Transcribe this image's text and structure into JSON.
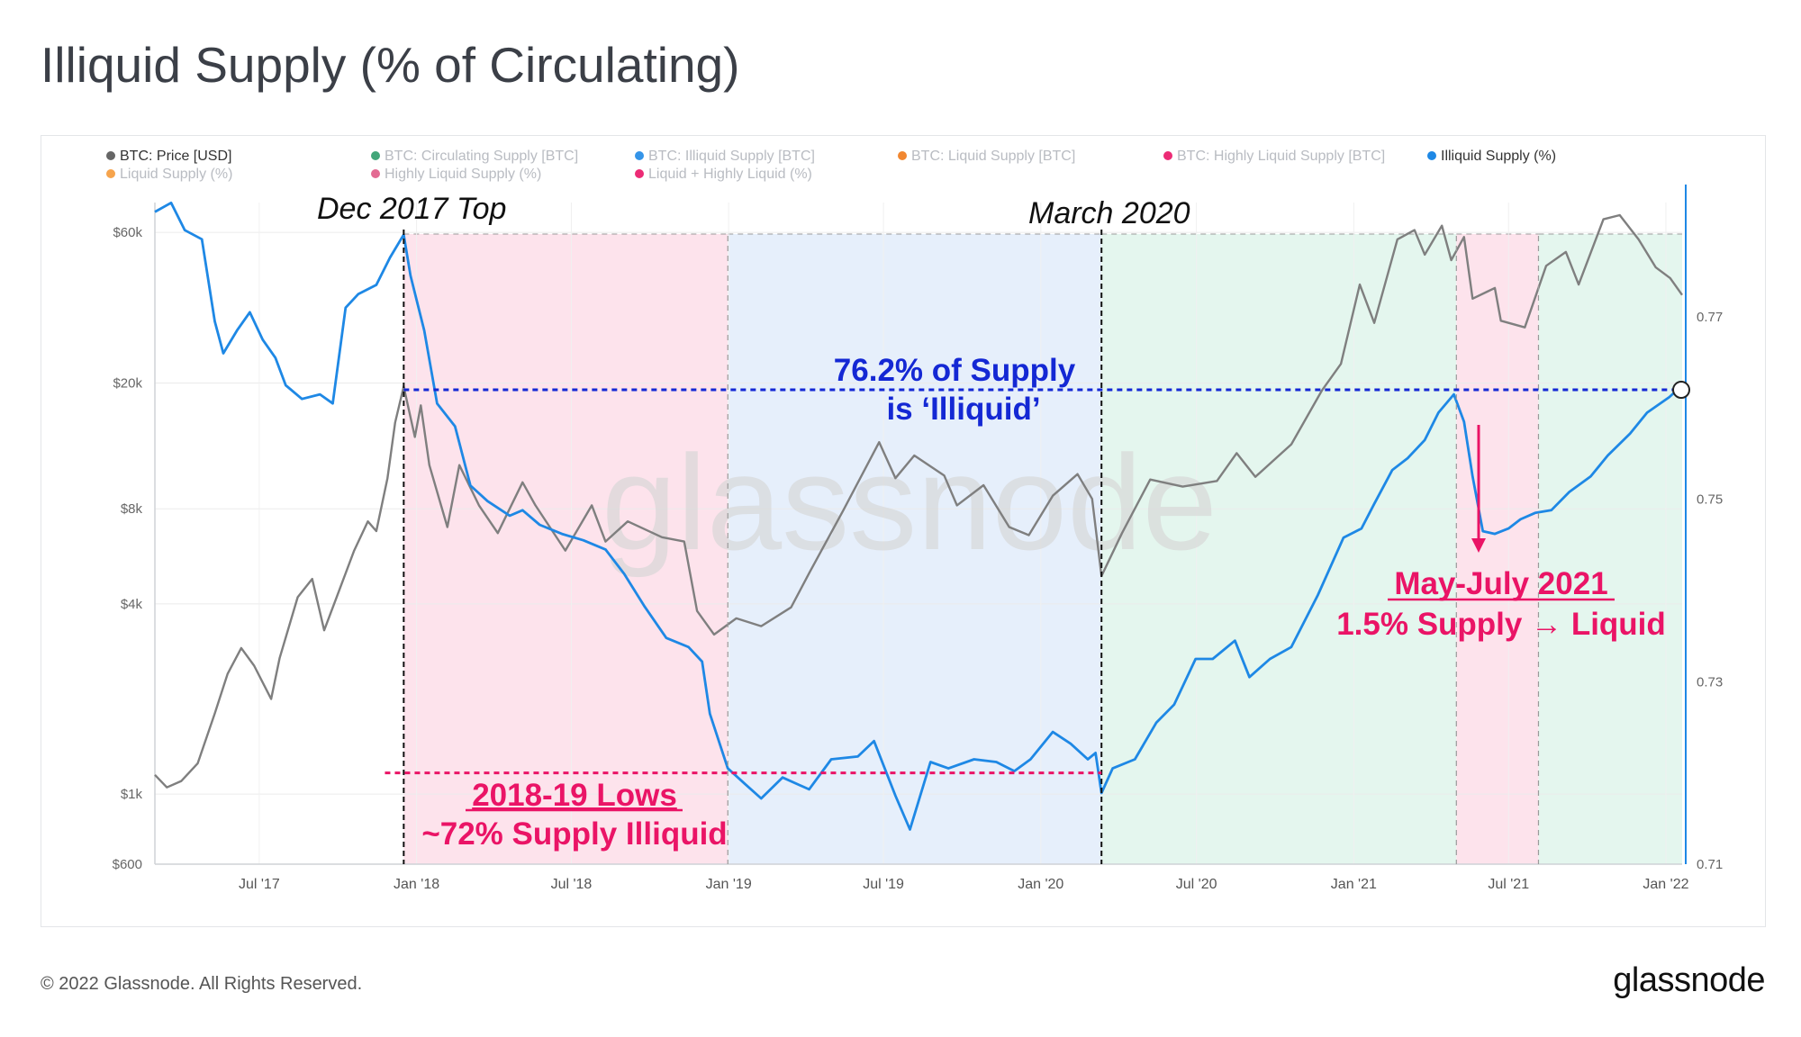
{
  "title": "Illiquid Supply (% of Circulating)",
  "footer": {
    "copyright": "© 2022 Glassnode. All Rights Reserved.",
    "logo": "glassnode"
  },
  "watermark": "glassnode",
  "colors": {
    "price": "#7f7f7f",
    "illiquid": "#1e88e5",
    "pink_zone": "#fde3ec",
    "blue_zone": "#e6effb",
    "green_zone": "#e4f6ee",
    "annotation_blue": "#1428d4",
    "annotation_pink": "#ea1466"
  },
  "legend": [
    {
      "label": "BTC: Price [USD]",
      "color": "#666666",
      "active": true
    },
    {
      "label": "BTC: Circulating Supply [BTC]",
      "color": "#2e9c6a",
      "active": false
    },
    {
      "label": "BTC: Illiquid Supply [BTC]",
      "color": "#1e88e5",
      "active": false
    },
    {
      "label": "BTC: Liquid Supply [BTC]",
      "color": "#f07a1a",
      "active": false
    },
    {
      "label": "BTC: Highly Liquid Supply [BTC]",
      "color": "#ea1466",
      "active": false
    },
    {
      "label": "Illiquid Supply (%)",
      "color": "#1e88e5",
      "active": true
    },
    {
      "label": "Liquid Supply (%)",
      "color": "#f59a3a",
      "active": false
    },
    {
      "label": "Highly Liquid Supply (%)",
      "color": "#e05a86",
      "active": false
    },
    {
      "label": "Liquid + Highly Liquid (%)",
      "color": "#ea1466",
      "active": false
    }
  ],
  "annotations": {
    "dec2017": "Dec 2017 Top",
    "march2020": "March 2020",
    "supply_line1": "76.2% of Supply",
    "supply_line2": "is ‘Illiquid’",
    "lows_line1": "2018-19 Lows",
    "lows_line2": "~72% Supply Illiquid",
    "may_line1": "May-July 2021",
    "may_line2": "1.5% Supply → Liquid"
  },
  "chart_data": {
    "type": "line",
    "x_axis": {
      "type": "date",
      "range": [
        "2017-03-01",
        "2022-01-20"
      ],
      "ticks": [
        {
          "date": "2017-07-01",
          "label": "Jul '17"
        },
        {
          "date": "2018-01-01",
          "label": "Jan '18"
        },
        {
          "date": "2018-07-01",
          "label": "Jul '18"
        },
        {
          "date": "2019-01-01",
          "label": "Jan '19"
        },
        {
          "date": "2019-07-01",
          "label": "Jul '19"
        },
        {
          "date": "2020-01-01",
          "label": "Jan '20"
        },
        {
          "date": "2020-07-01",
          "label": "Jul '20"
        },
        {
          "date": "2021-01-01",
          "label": "Jan '21"
        },
        {
          "date": "2021-07-01",
          "label": "Jul '21"
        },
        {
          "date": "2022-01-01",
          "label": "Jan '22"
        }
      ]
    },
    "y_left": {
      "scale": "log",
      "range": [
        600,
        85000
      ],
      "ticks": [
        {
          "value": 60000,
          "label": "$60k"
        },
        {
          "value": 20000,
          "label": "$20k"
        },
        {
          "value": 8000,
          "label": "$8k"
        },
        {
          "value": 4000,
          "label": "$4k"
        },
        {
          "value": 1000,
          "label": "$1k"
        },
        {
          "value": 600,
          "label": "$600"
        }
      ]
    },
    "y_right": {
      "scale": "linear",
      "range": [
        0.71,
        0.7845
      ],
      "ticks": [
        {
          "value": 0.77,
          "label": "0.77"
        },
        {
          "value": 0.75,
          "label": "0.75"
        },
        {
          "value": 0.73,
          "label": "0.73"
        },
        {
          "value": 0.71,
          "label": "0.71"
        }
      ]
    },
    "zones": [
      {
        "start": "2017-12-17",
        "end": "2018-12-31",
        "color": "pink"
      },
      {
        "start": "2018-12-31",
        "end": "2020-03-12",
        "color": "blue"
      },
      {
        "start": "2020-03-12",
        "end": "2021-05-01",
        "color": "green"
      },
      {
        "start": "2021-05-01",
        "end": "2021-08-05",
        "color": "pink"
      },
      {
        "start": "2021-08-05",
        "end": "2022-01-20",
        "color": "green"
      }
    ],
    "reference_lines": [
      {
        "axis": "right",
        "value": 0.762,
        "color": "blue",
        "from": "2017-12-17",
        "to": "2022-01-20"
      },
      {
        "axis": "right",
        "value": 0.72,
        "color": "pink",
        "from": "2017-11-25",
        "to": "2020-03-12"
      }
    ],
    "series": [
      {
        "name": "BTC: Price [USD]",
        "axis": "left",
        "color": "#7f7f7f",
        "points": [
          [
            "2017-03-01",
            1150
          ],
          [
            "2017-03-15",
            1050
          ],
          [
            "2017-04-01",
            1100
          ],
          [
            "2017-04-20",
            1250
          ],
          [
            "2017-05-10",
            1800
          ],
          [
            "2017-05-25",
            2400
          ],
          [
            "2017-06-10",
            2900
          ],
          [
            "2017-06-25",
            2550
          ],
          [
            "2017-07-15",
            2000
          ],
          [
            "2017-07-25",
            2700
          ],
          [
            "2017-08-15",
            4200
          ],
          [
            "2017-09-01",
            4800
          ],
          [
            "2017-09-15",
            3300
          ],
          [
            "2017-10-01",
            4300
          ],
          [
            "2017-10-20",
            5900
          ],
          [
            "2017-11-05",
            7300
          ],
          [
            "2017-11-15",
            6800
          ],
          [
            "2017-11-28",
            10000
          ],
          [
            "2017-12-07",
            15000
          ],
          [
            "2017-12-17",
            19500
          ],
          [
            "2017-12-30",
            13500
          ],
          [
            "2018-01-06",
            17000
          ],
          [
            "2018-01-16",
            11000
          ],
          [
            "2018-02-06",
            7000
          ],
          [
            "2018-02-20",
            11000
          ],
          [
            "2018-03-15",
            8200
          ],
          [
            "2018-04-06",
            6700
          ],
          [
            "2018-05-05",
            9700
          ],
          [
            "2018-05-20",
            8200
          ],
          [
            "2018-06-24",
            5900
          ],
          [
            "2018-07-25",
            8200
          ],
          [
            "2018-08-10",
            6300
          ],
          [
            "2018-09-05",
            7300
          ],
          [
            "2018-10-15",
            6500
          ],
          [
            "2018-11-10",
            6300
          ],
          [
            "2018-11-25",
            3800
          ],
          [
            "2018-12-15",
            3200
          ],
          [
            "2019-01-10",
            3600
          ],
          [
            "2019-02-08",
            3400
          ],
          [
            "2019-03-15",
            3900
          ],
          [
            "2019-04-05",
            5000
          ],
          [
            "2019-05-15",
            7900
          ],
          [
            "2019-06-26",
            13000
          ],
          [
            "2019-07-15",
            10000
          ],
          [
            "2019-08-06",
            11800
          ],
          [
            "2019-09-10",
            10200
          ],
          [
            "2019-09-25",
            8200
          ],
          [
            "2019-10-26",
            9500
          ],
          [
            "2019-11-25",
            7000
          ],
          [
            "2019-12-18",
            6600
          ],
          [
            "2020-01-15",
            8800
          ],
          [
            "2020-02-13",
            10300
          ],
          [
            "2020-03-01",
            8600
          ],
          [
            "2020-03-12",
            4900
          ],
          [
            "2020-04-05",
            6700
          ],
          [
            "2020-05-08",
            9900
          ],
          [
            "2020-06-15",
            9400
          ],
          [
            "2020-07-25",
            9800
          ],
          [
            "2020-08-17",
            12000
          ],
          [
            "2020-09-08",
            10100
          ],
          [
            "2020-10-20",
            12800
          ],
          [
            "2020-11-25",
            19000
          ],
          [
            "2020-12-17",
            23000
          ],
          [
            "2021-01-08",
            41000
          ],
          [
            "2021-01-25",
            31000
          ],
          [
            "2021-02-21",
            57000
          ],
          [
            "2021-03-13",
            61000
          ],
          [
            "2021-03-25",
            51000
          ],
          [
            "2021-04-14",
            63000
          ],
          [
            "2021-04-25",
            49000
          ],
          [
            "2021-05-10",
            58000
          ],
          [
            "2021-05-20",
            37000
          ],
          [
            "2021-06-15",
            40000
          ],
          [
            "2021-06-22",
            31500
          ],
          [
            "2021-07-20",
            30000
          ],
          [
            "2021-08-14",
            47000
          ],
          [
            "2021-09-06",
            52000
          ],
          [
            "2021-09-21",
            41000
          ],
          [
            "2021-10-20",
            66000
          ],
          [
            "2021-11-08",
            68000
          ],
          [
            "2021-11-30",
            57000
          ],
          [
            "2021-12-20",
            46500
          ],
          [
            "2022-01-06",
            43000
          ],
          [
            "2022-01-20",
            38000
          ]
        ]
      },
      {
        "name": "Illiquid Supply (%)",
        "axis": "right",
        "color": "#1e88e5",
        "points": [
          [
            "2017-03-01",
            0.7815
          ],
          [
            "2017-03-20",
            0.7825
          ],
          [
            "2017-04-05",
            0.7795
          ],
          [
            "2017-04-25",
            0.7785
          ],
          [
            "2017-05-10",
            0.7695
          ],
          [
            "2017-05-20",
            0.766
          ],
          [
            "2017-06-05",
            0.7685
          ],
          [
            "2017-06-20",
            0.7705
          ],
          [
            "2017-07-05",
            0.7675
          ],
          [
            "2017-07-20",
            0.7655
          ],
          [
            "2017-08-01",
            0.7625
          ],
          [
            "2017-08-20",
            0.761
          ],
          [
            "2017-09-10",
            0.7615
          ],
          [
            "2017-09-25",
            0.7605
          ],
          [
            "2017-10-10",
            0.771
          ],
          [
            "2017-10-25",
            0.7725
          ],
          [
            "2017-11-15",
            0.7735
          ],
          [
            "2017-12-01",
            0.7765
          ],
          [
            "2017-12-17",
            0.779
          ],
          [
            "2017-12-25",
            0.7745
          ],
          [
            "2018-01-10",
            0.7685
          ],
          [
            "2018-01-25",
            0.7605
          ],
          [
            "2018-02-15",
            0.758
          ],
          [
            "2018-03-05",
            0.7515
          ],
          [
            "2018-03-25",
            0.7498
          ],
          [
            "2018-04-20",
            0.7482
          ],
          [
            "2018-05-05",
            0.7488
          ],
          [
            "2018-05-25",
            0.7472
          ],
          [
            "2018-06-20",
            0.7462
          ],
          [
            "2018-07-15",
            0.7455
          ],
          [
            "2018-08-10",
            0.7445
          ],
          [
            "2018-09-01",
            0.7418
          ],
          [
            "2018-09-25",
            0.7382
          ],
          [
            "2018-10-20",
            0.7348
          ],
          [
            "2018-11-15",
            0.7338
          ],
          [
            "2018-12-01",
            0.7322
          ],
          [
            "2018-12-10",
            0.7265
          ],
          [
            "2018-12-31",
            0.7205
          ],
          [
            "2019-01-20",
            0.7188
          ],
          [
            "2019-02-08",
            0.7172
          ],
          [
            "2019-03-05",
            0.7195
          ],
          [
            "2019-04-05",
            0.7182
          ],
          [
            "2019-05-01",
            0.7215
          ],
          [
            "2019-06-01",
            0.7218
          ],
          [
            "2019-06-20",
            0.7235
          ],
          [
            "2019-07-15",
            0.7175
          ],
          [
            "2019-08-01",
            0.7138
          ],
          [
            "2019-08-25",
            0.7212
          ],
          [
            "2019-09-15",
            0.7205
          ],
          [
            "2019-10-15",
            0.7215
          ],
          [
            "2019-11-10",
            0.7212
          ],
          [
            "2019-12-01",
            0.7202
          ],
          [
            "2019-12-20",
            0.7215
          ],
          [
            "2020-01-15",
            0.7245
          ],
          [
            "2020-02-05",
            0.7232
          ],
          [
            "2020-02-25",
            0.7215
          ],
          [
            "2020-03-05",
            0.7222
          ],
          [
            "2020-03-12",
            0.7178
          ],
          [
            "2020-03-25",
            0.7205
          ],
          [
            "2020-04-20",
            0.7215
          ],
          [
            "2020-05-15",
            0.7255
          ],
          [
            "2020-06-05",
            0.7275
          ],
          [
            "2020-06-30",
            0.7325
          ],
          [
            "2020-07-20",
            0.7325
          ],
          [
            "2020-08-15",
            0.7345
          ],
          [
            "2020-09-01",
            0.7305
          ],
          [
            "2020-09-25",
            0.7325
          ],
          [
            "2020-10-20",
            0.7338
          ],
          [
            "2020-11-20",
            0.7395
          ],
          [
            "2020-12-20",
            0.7458
          ],
          [
            "2021-01-10",
            0.7468
          ],
          [
            "2021-01-25",
            0.7495
          ],
          [
            "2021-02-15",
            0.7532
          ],
          [
            "2021-03-05",
            0.7545
          ],
          [
            "2021-03-25",
            0.7565
          ],
          [
            "2021-04-10",
            0.7595
          ],
          [
            "2021-04-28",
            0.7615
          ],
          [
            "2021-05-10",
            0.7585
          ],
          [
            "2021-05-20",
            0.7525
          ],
          [
            "2021-06-01",
            0.7465
          ],
          [
            "2021-06-15",
            0.7462
          ],
          [
            "2021-07-01",
            0.7468
          ],
          [
            "2021-07-15",
            0.7478
          ],
          [
            "2021-08-01",
            0.7485
          ],
          [
            "2021-08-20",
            0.7488
          ],
          [
            "2021-09-10",
            0.7508
          ],
          [
            "2021-10-05",
            0.7525
          ],
          [
            "2021-10-25",
            0.7548
          ],
          [
            "2021-11-20",
            0.7572
          ],
          [
            "2021-12-10",
            0.7595
          ],
          [
            "2022-01-05",
            0.7612
          ],
          [
            "2022-01-20",
            0.7625
          ]
        ]
      }
    ]
  }
}
